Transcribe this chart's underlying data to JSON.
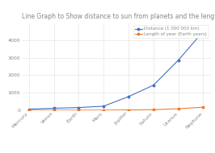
{
  "title": "Line Graph to Show distance to sun from planets and the length of the Earth years",
  "planets": [
    "Mercury",
    "Venus",
    "Earth",
    "Mars",
    "Jupiter",
    "Saturn",
    "Uranus",
    "Neptune"
  ],
  "distance": [
    57.9,
    108.2,
    149.6,
    227.9,
    778.5,
    1432.0,
    2867.0,
    4515.0
  ],
  "earth_years": [
    0.24,
    0.62,
    1.0,
    1.88,
    11.86,
    29.46,
    84.01,
    164.8
  ],
  "distance_color": "#4472C4",
  "years_color": "#ED7D31",
  "legend_distance": "Distance (1 000 000 km)",
  "legend_years": "Length of year (Earth years)",
  "ylim": [
    0,
    5000
  ],
  "yticks": [
    0,
    1000,
    2000,
    3000,
    4000
  ],
  "background_color": "#ffffff",
  "title_fontsize": 5.5,
  "axis_fontsize": 4.5,
  "legend_fontsize": 4.0,
  "title_color": "#888888",
  "tick_color": "#888888",
  "grid_color": "#e0e0e0"
}
